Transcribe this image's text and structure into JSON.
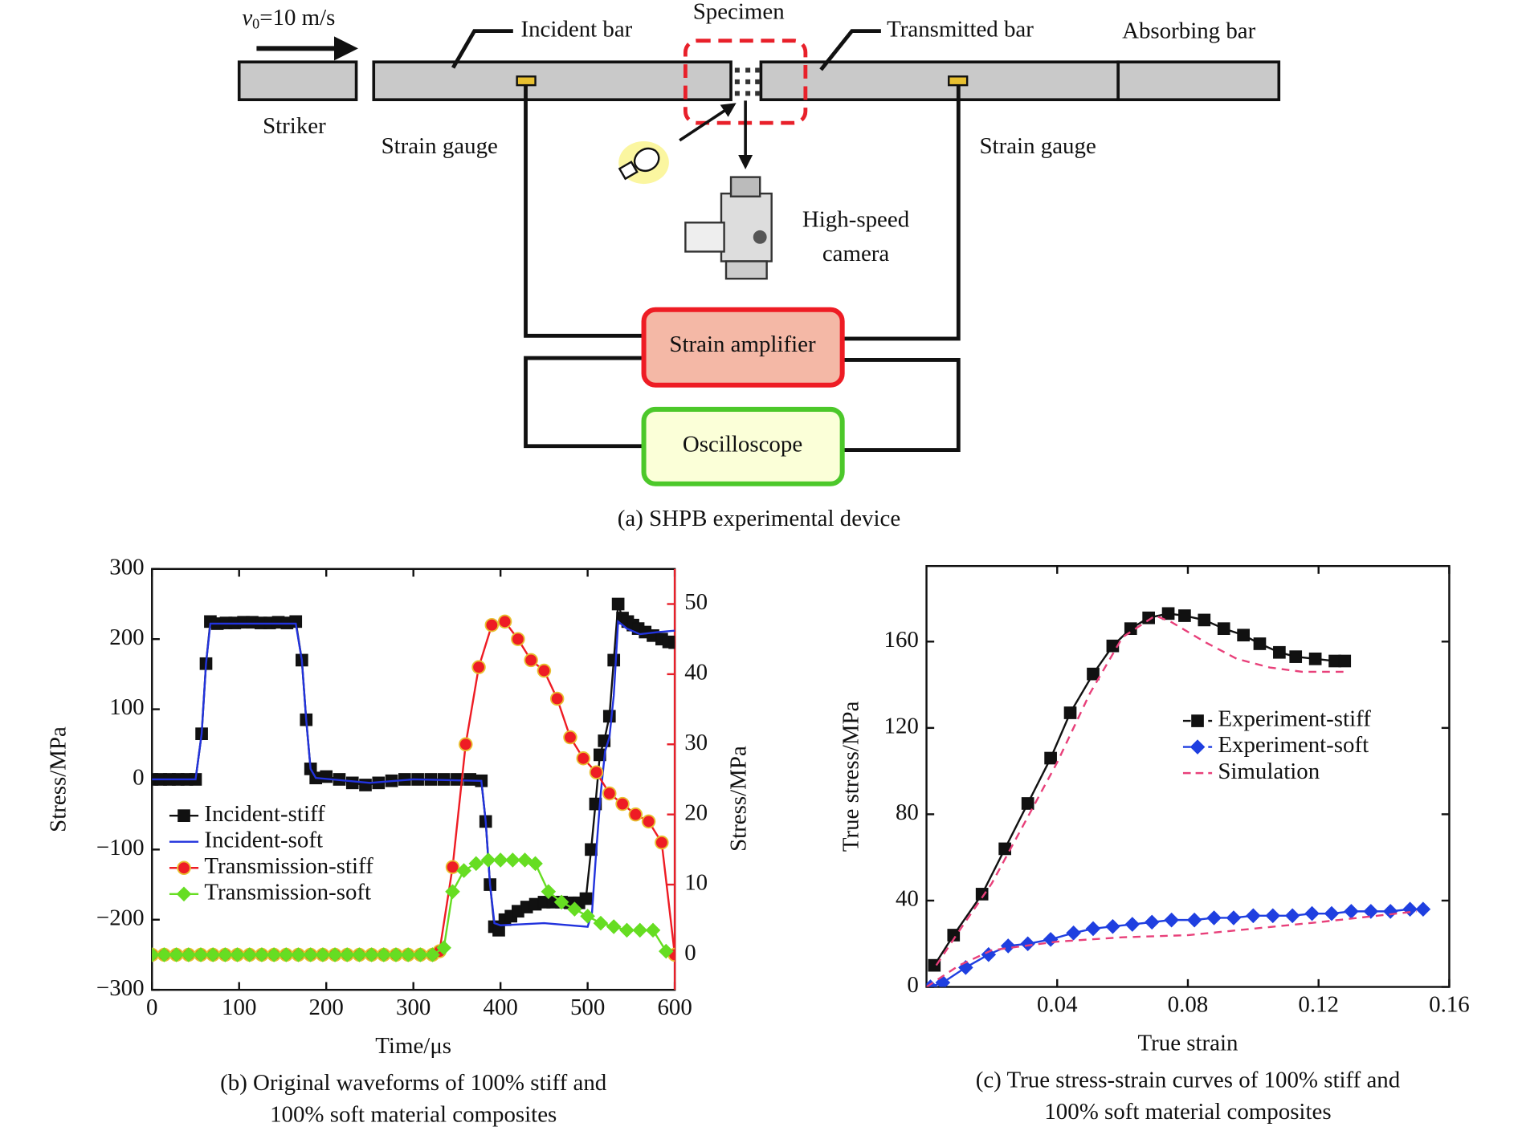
{
  "diagram": {
    "velocity": {
      "symbol": "v",
      "subscript": "0",
      "text": "=10 m/s"
    },
    "incident_bar": "Incident bar",
    "specimen": "Specimen",
    "transmitted_bar": "Transmitted bar",
    "absorbing_bar": "Absorbing bar",
    "striker": "Striker",
    "strain_gauge_left": "Strain gauge",
    "strain_gauge_right": "Strain gauge",
    "camera": [
      "High-speed",
      "camera"
    ],
    "amplifier": "Strain amplifier",
    "oscilloscope": "Oscilloscope",
    "caption": "(a) SHPB experimental device"
  },
  "chart_data": [
    {
      "type": "line",
      "x_label": "Time/μs",
      "y_label": "Stress/MPa",
      "y2_label": "Stress/MPa",
      "y2_color": "#e8202a",
      "caption": [
        "(b) Original waveforms of 100% stiff and",
        "100% soft material composites"
      ],
      "xlim": [
        0,
        600
      ],
      "xticks": [
        0,
        100,
        200,
        300,
        400,
        500,
        600
      ],
      "ylim": [
        -300,
        300
      ],
      "yticks": [
        {
          "value": -300,
          "label": "−300"
        },
        {
          "value": -200,
          "label": "−200"
        },
        {
          "value": -100,
          "label": "−100"
        },
        0,
        100,
        200,
        300
      ],
      "y2lim": [
        -5,
        55
      ],
      "y2ticks": [
        0,
        10,
        20,
        30,
        40,
        50
      ],
      "legend": "lower left",
      "series": [
        {
          "name": "Incident-stiff",
          "color": "#111111",
          "marker": "square",
          "line_style": "solid",
          "x": [
            0,
            10,
            20,
            30,
            40,
            50,
            57,
            62,
            67,
            75,
            85,
            95,
            105,
            115,
            125,
            135,
            145,
            155,
            165,
            172,
            177,
            182,
            188,
            200,
            215,
            230,
            245,
            260,
            275,
            290,
            305,
            320,
            335,
            350,
            365,
            378,
            383,
            388,
            393,
            398,
            405,
            412,
            420,
            430,
            440,
            450,
            460,
            470,
            480,
            490,
            498,
            504,
            509,
            514,
            519,
            525,
            530,
            535,
            540,
            546,
            552,
            558,
            566,
            575,
            585,
            593,
            600
          ],
          "values": [
            0,
            0,
            0,
            0,
            0,
            0,
            65,
            165,
            225,
            222,
            223,
            223,
            224,
            224,
            223,
            223,
            224,
            223,
            225,
            170,
            85,
            15,
            2,
            4,
            0,
            -5,
            -8,
            -5,
            -2,
            0,
            0,
            0,
            0,
            0,
            0,
            -2,
            -60,
            -150,
            -210,
            -215,
            -200,
            -195,
            -188,
            -182,
            -178,
            -175,
            -175,
            -175,
            -176,
            -176,
            -170,
            -100,
            -35,
            35,
            55,
            90,
            170,
            250,
            230,
            225,
            220,
            215,
            210,
            205,
            200,
            196,
            195
          ]
        },
        {
          "name": "Incident-soft",
          "color": "#2233dd",
          "marker": "none",
          "line_style": "solid",
          "x": [
            0,
            50,
            57,
            62,
            67,
            100,
            165,
            172,
            177,
            182,
            188,
            250,
            300,
            378,
            383,
            388,
            393,
            400,
            450,
            500,
            505,
            510,
            515,
            520,
            525,
            530,
            535,
            545,
            560,
            580,
            600
          ],
          "values": [
            0,
            0,
            65,
            165,
            222,
            222,
            222,
            170,
            85,
            15,
            2,
            -5,
            0,
            -2,
            -60,
            -150,
            -205,
            -208,
            -205,
            -210,
            -190,
            -100,
            -20,
            40,
            60,
            120,
            225,
            215,
            207,
            210,
            212
          ]
        },
        {
          "name": "Transmission-stiff",
          "color": "#ee1c24",
          "marker": "circle",
          "line_style": "solid",
          "axis": "y2",
          "x": [
            0,
            14,
            28,
            42,
            56,
            70,
            84,
            98,
            112,
            126,
            140,
            154,
            168,
            182,
            196,
            210,
            224,
            238,
            252,
            266,
            280,
            294,
            308,
            322,
            330,
            345,
            360,
            375,
            390,
            405,
            420,
            435,
            450,
            465,
            480,
            495,
            510,
            525,
            540,
            555,
            570,
            585,
            600
          ],
          "values": [
            0,
            0,
            0,
            0,
            0,
            0,
            0,
            0,
            0,
            0,
            0,
            0,
            0,
            0,
            0,
            0,
            0,
            0,
            0,
            0,
            0,
            0,
            0,
            0,
            0.5,
            12.5,
            30,
            41,
            47,
            47.5,
            45,
            42,
            40.5,
            36.5,
            31,
            28,
            26,
            23,
            21.5,
            20,
            19,
            16,
            0
          ]
        },
        {
          "name": "Transmission-soft",
          "color": "#66dd22",
          "marker": "diamond",
          "line_style": "solid",
          "axis": "y2",
          "x": [
            0,
            14,
            28,
            42,
            56,
            70,
            84,
            98,
            112,
            126,
            140,
            154,
            168,
            182,
            196,
            210,
            224,
            238,
            252,
            266,
            280,
            294,
            308,
            322,
            335,
            345,
            358,
            372,
            386,
            400,
            414,
            428,
            440,
            455,
            470,
            485,
            500,
            515,
            530,
            545,
            560,
            575,
            590
          ],
          "values": [
            0,
            0,
            0,
            0,
            0,
            0,
            0,
            0,
            0,
            0,
            0,
            0,
            0,
            0,
            0,
            0,
            0,
            0,
            0,
            0,
            0,
            0,
            0,
            0,
            1,
            9,
            12,
            13,
            13.5,
            13.5,
            13.5,
            13.5,
            13,
            9,
            7.5,
            6.5,
            5.5,
            4.5,
            4,
            3.5,
            3.5,
            3.5,
            0.5
          ]
        }
      ]
    },
    {
      "type": "line",
      "x_label": "True strain",
      "y_label": "True stress/MPa",
      "caption": [
        "(c) True stress-strain curves of 100% stiff and",
        "100% soft material composites"
      ],
      "xlim": [
        0,
        0.16
      ],
      "xticks": [
        0.04,
        0.08,
        0.12,
        0.16
      ],
      "ylim": [
        0,
        195
      ],
      "yticks": [
        0,
        40,
        80,
        120,
        160
      ],
      "legend": "center right",
      "series": [
        {
          "name": "Experiment-stiff",
          "color": "#111111",
          "marker": "square",
          "line_style": "solid",
          "x": [
            0.0024,
            0.0083,
            0.017,
            0.024,
            0.031,
            0.038,
            0.044,
            0.051,
            0.057,
            0.0625,
            0.068,
            0.074,
            0.079,
            0.085,
            0.091,
            0.097,
            0.102,
            0.108,
            0.113,
            0.119,
            0.125,
            0.128
          ],
          "values": [
            10,
            24,
            43,
            64,
            85,
            106,
            127,
            145,
            158,
            166,
            171,
            173,
            172,
            170,
            166,
            163,
            159,
            155,
            153,
            152,
            151,
            151
          ]
        },
        {
          "name": "Experiment-soft",
          "color": "#1f3fe0",
          "marker": "diamond",
          "line_style": "solid",
          "x": [
            0.0012,
            0.005,
            0.012,
            0.019,
            0.025,
            0.031,
            0.038,
            0.045,
            0.051,
            0.057,
            0.063,
            0.069,
            0.075,
            0.082,
            0.088,
            0.094,
            0.1,
            0.106,
            0.112,
            0.118,
            0.124,
            0.13,
            0.136,
            0.142,
            0.148,
            0.152
          ],
          "values": [
            0,
            2,
            9,
            15,
            19,
            20,
            22,
            25,
            27,
            28,
            29,
            30,
            31,
            31,
            32,
            32,
            33,
            33,
            33,
            34,
            34,
            35,
            35,
            35,
            36,
            36
          ]
        },
        {
          "name": "Simulation",
          "color": "#e8407a",
          "marker": "none",
          "line_style": "dashed",
          "x": [
            0.003,
            0.01,
            0.02,
            0.03,
            0.04,
            0.05,
            0.06,
            0.07,
            0.075,
            0.085,
            0.095,
            0.105,
            0.115,
            0.128,
            null,
            0,
            0.01,
            0.02,
            0.03,
            0.04,
            0.05,
            0.06,
            0.08,
            0.1,
            0.12,
            0.15
          ],
          "values": [
            10,
            26,
            48,
            76,
            104,
            136,
            162,
            172,
            169,
            160,
            152,
            148,
            146,
            146,
            null,
            0,
            10,
            17,
            19,
            21,
            22,
            23,
            24,
            27,
            30,
            35
          ]
        }
      ]
    }
  ]
}
